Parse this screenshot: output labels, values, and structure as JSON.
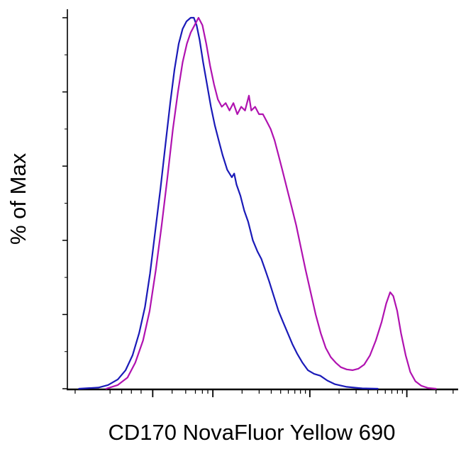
{
  "figure": {
    "background": "#ffffff"
  },
  "chart_data": {
    "type": "line",
    "subtype": "flow-cytometry-histogram-overlay",
    "title": "",
    "xlabel": "CD170 NovaFluor Yellow 690",
    "ylabel": "% of Max",
    "x_scale": "log",
    "x_units": "fraction-of-axis",
    "y_units": "percent-of-max",
    "ylim": [
      0,
      100
    ],
    "grid": false,
    "legend": "none",
    "axis_color": "#000000",
    "x_axis": {
      "major_ticks": [
        0.22,
        0.375,
        0.625,
        0.875
      ],
      "minor_ticks": [
        0.02,
        0.11,
        0.14,
        0.165,
        0.19,
        0.27,
        0.305,
        0.33,
        0.348,
        0.362,
        0.4503,
        0.4943,
        0.5255,
        0.5497,
        0.5695,
        0.5863,
        0.6008,
        0.6136,
        0.7003,
        0.7443,
        0.7755,
        0.7997,
        0.8195,
        0.8363,
        0.8508,
        0.8636,
        0.9503,
        0.9943
      ]
    },
    "y_axis": {
      "major_ticks": [
        0,
        20,
        40,
        60,
        80,
        100
      ],
      "minor_ticks": [
        10,
        30,
        50,
        70,
        90
      ]
    },
    "series": [
      {
        "name": "blue",
        "color": "#1a1ab8",
        "points": [
          [
            0.03,
            0
          ],
          [
            0.08,
            0.3
          ],
          [
            0.105,
            1
          ],
          [
            0.13,
            2.5
          ],
          [
            0.15,
            5
          ],
          [
            0.168,
            9
          ],
          [
            0.185,
            15
          ],
          [
            0.2,
            22
          ],
          [
            0.213,
            31
          ],
          [
            0.226,
            42
          ],
          [
            0.24,
            54
          ],
          [
            0.253,
            66
          ],
          [
            0.265,
            77
          ],
          [
            0.276,
            86
          ],
          [
            0.287,
            93
          ],
          [
            0.297,
            97
          ],
          [
            0.307,
            99
          ],
          [
            0.318,
            100
          ],
          [
            0.326,
            100
          ],
          [
            0.333,
            98
          ],
          [
            0.341,
            94
          ],
          [
            0.35,
            88
          ],
          [
            0.36,
            82
          ],
          [
            0.37,
            76
          ],
          [
            0.38,
            71
          ],
          [
            0.39,
            67
          ],
          [
            0.4,
            63
          ],
          [
            0.412,
            59
          ],
          [
            0.424,
            57
          ],
          [
            0.43,
            58
          ],
          [
            0.436,
            55
          ],
          [
            0.446,
            52
          ],
          [
            0.456,
            48
          ],
          [
            0.466,
            45
          ],
          [
            0.478,
            40
          ],
          [
            0.49,
            37
          ],
          [
            0.5,
            35
          ],
          [
            0.51,
            32
          ],
          [
            0.52,
            29
          ],
          [
            0.532,
            25
          ],
          [
            0.544,
            21
          ],
          [
            0.556,
            18
          ],
          [
            0.568,
            15
          ],
          [
            0.58,
            12
          ],
          [
            0.592,
            9.5
          ],
          [
            0.606,
            7
          ],
          [
            0.62,
            5
          ],
          [
            0.636,
            4
          ],
          [
            0.652,
            3.5
          ],
          [
            0.67,
            2.2
          ],
          [
            0.69,
            1.2
          ],
          [
            0.72,
            0.5
          ],
          [
            0.76,
            0.1
          ],
          [
            0.8,
            0
          ]
        ]
      },
      {
        "name": "magenta",
        "color": "#b012b0",
        "points": [
          [
            0.1,
            0
          ],
          [
            0.13,
            1
          ],
          [
            0.155,
            3
          ],
          [
            0.175,
            7
          ],
          [
            0.195,
            13
          ],
          [
            0.212,
            21
          ],
          [
            0.228,
            32
          ],
          [
            0.243,
            44
          ],
          [
            0.258,
            57
          ],
          [
            0.272,
            70
          ],
          [
            0.285,
            80
          ],
          [
            0.297,
            88
          ],
          [
            0.308,
            93
          ],
          [
            0.318,
            96
          ],
          [
            0.328,
            98
          ],
          [
            0.338,
            100
          ],
          [
            0.348,
            98
          ],
          [
            0.358,
            93
          ],
          [
            0.368,
            87
          ],
          [
            0.378,
            82
          ],
          [
            0.388,
            78
          ],
          [
            0.398,
            76
          ],
          [
            0.408,
            77
          ],
          [
            0.418,
            75
          ],
          [
            0.428,
            77
          ],
          [
            0.438,
            74
          ],
          [
            0.448,
            76
          ],
          [
            0.458,
            75
          ],
          [
            0.468,
            79
          ],
          [
            0.474,
            75
          ],
          [
            0.484,
            76
          ],
          [
            0.494,
            74
          ],
          [
            0.504,
            74
          ],
          [
            0.514,
            72
          ],
          [
            0.524,
            70
          ],
          [
            0.534,
            67
          ],
          [
            0.544,
            63
          ],
          [
            0.554,
            59
          ],
          [
            0.566,
            54
          ],
          [
            0.578,
            49
          ],
          [
            0.59,
            44
          ],
          [
            0.602,
            38
          ],
          [
            0.614,
            32
          ],
          [
            0.627,
            26
          ],
          [
            0.64,
            20
          ],
          [
            0.653,
            15
          ],
          [
            0.666,
            11
          ],
          [
            0.679,
            8.5
          ],
          [
            0.692,
            7
          ],
          [
            0.705,
            5.8
          ],
          [
            0.72,
            5.2
          ],
          [
            0.735,
            5
          ],
          [
            0.75,
            5.4
          ],
          [
            0.765,
            6.5
          ],
          [
            0.78,
            9
          ],
          [
            0.795,
            13
          ],
          [
            0.81,
            18
          ],
          [
            0.822,
            23
          ],
          [
            0.832,
            26
          ],
          [
            0.84,
            25
          ],
          [
            0.85,
            21
          ],
          [
            0.86,
            15
          ],
          [
            0.872,
            9
          ],
          [
            0.884,
            4.5
          ],
          [
            0.897,
            2
          ],
          [
            0.912,
            0.8
          ],
          [
            0.93,
            0.2
          ],
          [
            0.95,
            0
          ]
        ]
      }
    ]
  }
}
